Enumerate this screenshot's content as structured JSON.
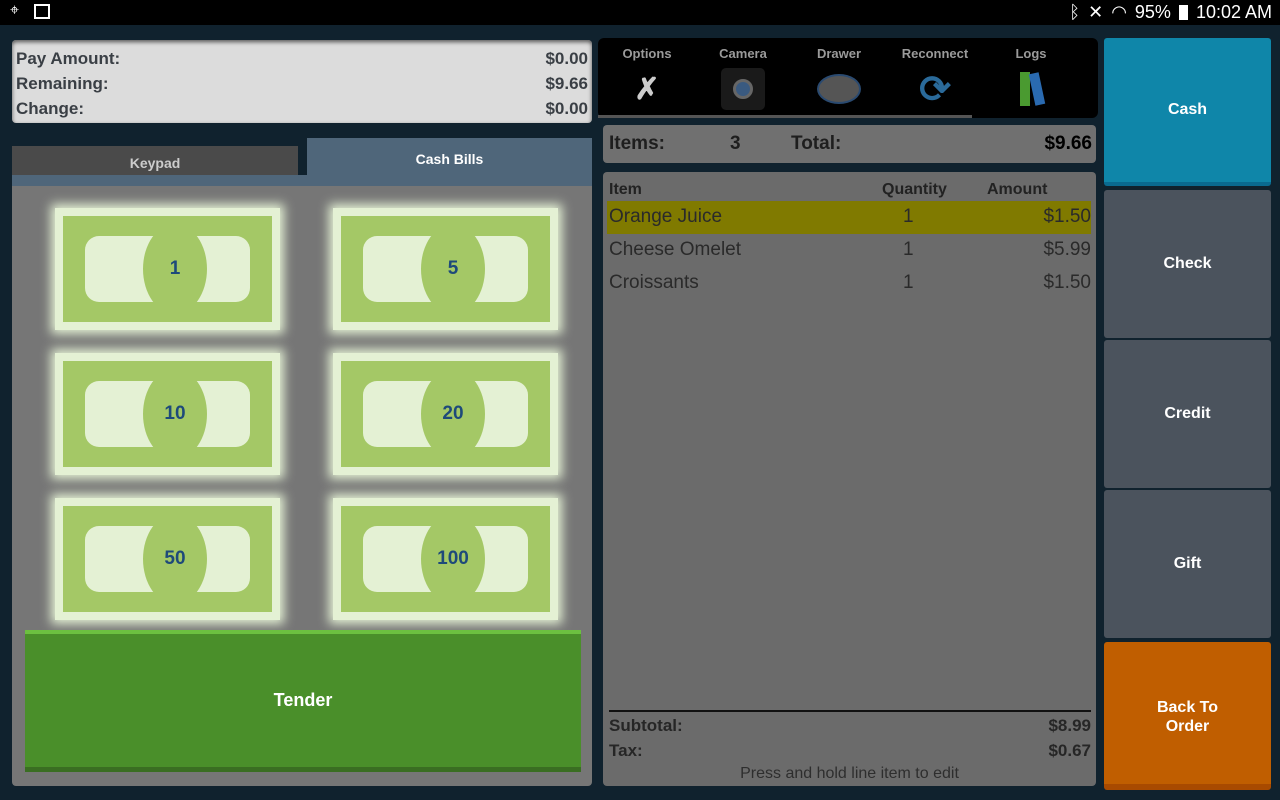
{
  "status_bar": {
    "battery": "95%",
    "time": "10:02 AM",
    "icons": [
      "location-icon",
      "image-icon",
      "bluetooth-icon",
      "mute-icon",
      "wifi-icon",
      "battery-icon"
    ]
  },
  "summary": {
    "rows": [
      {
        "label": "Pay Amount:",
        "value": "$0.00"
      },
      {
        "label": "Remaining:",
        "value": "$9.66"
      },
      {
        "label": "Change:",
        "value": "$0.00"
      }
    ]
  },
  "tabs": {
    "keypad": "Keypad",
    "cash_bills": "Cash Bills",
    "active": "Cash Bills"
  },
  "bills": [
    "1",
    "5",
    "10",
    "20",
    "50",
    "100"
  ],
  "tender_label": "Tender",
  "toolbar": [
    {
      "label": "Options",
      "icon": "tools-icon"
    },
    {
      "label": "Camera",
      "icon": "camera-icon"
    },
    {
      "label": "Drawer",
      "icon": "cash-drawer-icon"
    },
    {
      "label": "Reconnect",
      "icon": "reconnect-icon"
    },
    {
      "label": "Logs",
      "icon": "logs-binders-icon"
    }
  ],
  "items_bar": {
    "items_label": "Items:",
    "items_count": "3",
    "total_label": "Total:",
    "total": "$9.66"
  },
  "order": {
    "headers": {
      "item": "Item",
      "quantity": "Quantity",
      "amount": "Amount"
    },
    "rows": [
      {
        "item": "Orange Juice",
        "qty": "1",
        "amount": "$1.50",
        "selected": true
      },
      {
        "item": "Cheese Omelet",
        "qty": "1",
        "amount": "$5.99"
      },
      {
        "item": "Croissants",
        "qty": "1",
        "amount": "$1.50"
      }
    ],
    "subtotal_label": "Subtotal:",
    "subtotal": "$8.99",
    "tax_label": "Tax:",
    "tax": "$0.67",
    "hint": "Press and hold line item to edit"
  },
  "payment_buttons": [
    {
      "label": "Cash",
      "color": "#0f86a9"
    },
    {
      "label": "Check",
      "color": "#4b535d"
    },
    {
      "label": "Credit",
      "color": "#4b535d"
    },
    {
      "label": "Gift",
      "color": "#4b535d"
    },
    {
      "label": "Back To Order",
      "color": "#c05e00"
    }
  ]
}
